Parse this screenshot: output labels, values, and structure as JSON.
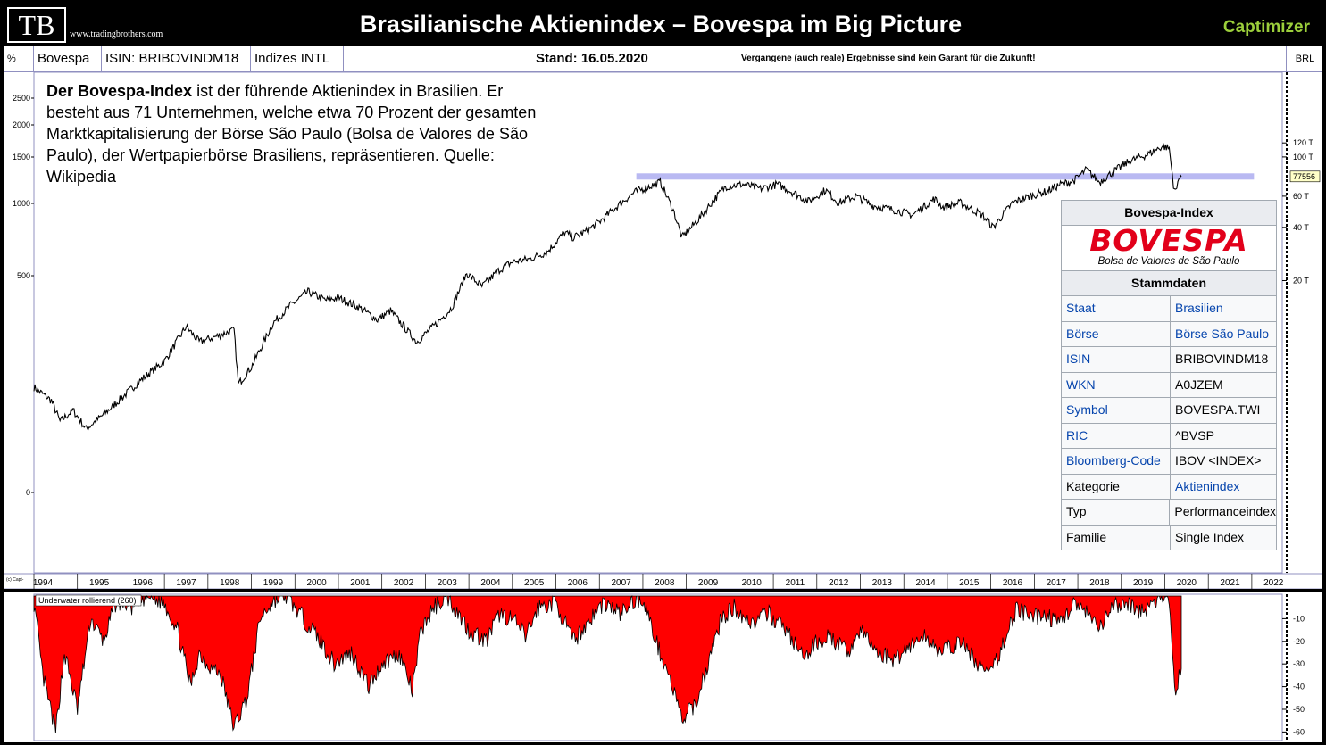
{
  "header": {
    "logo": "TB",
    "website": "www.tradingbrothers.com",
    "title": "Brasilianische Aktienindex – Bovespa im Big Picture",
    "brand": "Captimizer",
    "brand_color": "#9ccf3b"
  },
  "toolbar": {
    "percent": "%",
    "name": "Bovespa",
    "isin": "ISIN: BRIBOVINDM18",
    "group": "Indizes INTL",
    "date": "Stand: 16.05.2020",
    "disclaimer": "Vergangene (auch reale) Ergebnisse sind kein Garant für die Zukunft!",
    "currency": "BRL"
  },
  "description": {
    "bold": "Der Bovespa-Index",
    "text": " ist der führende Aktienindex in Brasilien. Er besteht aus 71 Unternehmen, welche etwa 70 Prozent der gesamten Marktkapitalisierung der Börse São Paulo (Bolsa de Valores de São Paulo), der Wertpapierbörse Brasiliens, repräsentieren. Quelle: Wikipedia"
  },
  "infobox": {
    "title": "Bovespa-Index",
    "logo_text": "BOVESPA",
    "logo_sub": "Bolsa de Valores de São Paulo",
    "section": "Stammdaten",
    "rows": [
      {
        "key": "Staat",
        "value": "Brasilien",
        "key_link": true,
        "value_link": true
      },
      {
        "key": "Börse",
        "value": "Börse São Paulo",
        "key_link": true,
        "value_link": true
      },
      {
        "key": "ISIN",
        "value": "BRIBOVINDM18",
        "key_link": true,
        "value_link": false
      },
      {
        "key": "WKN",
        "value": "A0JZEM",
        "key_link": true,
        "value_link": false
      },
      {
        "key": "Symbol",
        "value": "BOVESPA.TWI",
        "key_link": true,
        "value_link": false
      },
      {
        "key": "RIC",
        "value": "^BVSP",
        "key_link": true,
        "value_link": false
      },
      {
        "key": "Bloomberg-Code",
        "value": "IBOV <INDEX>",
        "key_link": true,
        "value_link": false
      },
      {
        "key": "Kategorie",
        "value": "Aktienindex",
        "key_link": false,
        "value_link": true
      },
      {
        "key": "Typ",
        "value": "Performanceindex",
        "key_link": false,
        "value_link": false
      },
      {
        "key": "Familie",
        "value": "Single Index",
        "key_link": false,
        "value_link": false
      }
    ]
  },
  "chart_data": [
    {
      "type": "line",
      "scale": "log",
      "x_ticks": [
        "1994",
        "1995",
        "1996",
        "1997",
        "1998",
        "1999",
        "2000",
        "2001",
        "2002",
        "2003",
        "2004",
        "2005",
        "2006",
        "2007",
        "2008",
        "2009",
        "2010",
        "2011",
        "2012",
        "2013",
        "2014",
        "2015",
        "2016",
        "2017",
        "2018",
        "2019",
        "2020",
        "2021",
        "2022"
      ],
      "left_ticks": [
        "2500",
        "2000",
        "1500",
        "1000",
        "500",
        "0"
      ],
      "right_ticks": [
        "120 T",
        "100 T",
        "60 T",
        "40 T",
        "20 T"
      ],
      "last_value": "77556",
      "resistance_level": 77556,
      "series": [
        {
          "values_points": [
            [
              1994.0,
              5
            ],
            [
              1994.4,
              4.2
            ],
            [
              1994.6,
              3.2
            ],
            [
              1994.9,
              3.7
            ],
            [
              1995.2,
              2.9
            ],
            [
              1995.6,
              3.5
            ],
            [
              1996.0,
              4.3
            ],
            [
              1996.5,
              5.6
            ],
            [
              1997.0,
              7.0
            ],
            [
              1997.5,
              11.0
            ],
            [
              1997.8,
              9.0
            ],
            [
              1998.1,
              9.5
            ],
            [
              1998.6,
              10.5
            ],
            [
              1998.7,
              5.2
            ],
            [
              1999.0,
              6.5
            ],
            [
              1999.5,
              11.5
            ],
            [
              1999.9,
              14.5
            ],
            [
              2000.3,
              17.3
            ],
            [
              2000.7,
              15.5
            ],
            [
              2001.0,
              16.0
            ],
            [
              2001.5,
              14.0
            ],
            [
              2001.9,
              12.0
            ],
            [
              2002.2,
              13.5
            ],
            [
              2002.6,
              10.3
            ],
            [
              2002.8,
              9.0
            ],
            [
              2003.3,
              11.7
            ],
            [
              2003.6,
              14.0
            ],
            [
              2003.95,
              22.0
            ],
            [
              2004.3,
              18.5
            ],
            [
              2004.7,
              23.0
            ],
            [
              2005.0,
              25.5
            ],
            [
              2005.4,
              26.5
            ],
            [
              2005.8,
              29.0
            ],
            [
              2006.2,
              37.5
            ],
            [
              2006.4,
              35.0
            ],
            [
              2006.7,
              38.0
            ],
            [
              2007.0,
              43.0
            ],
            [
              2007.5,
              55.0
            ],
            [
              2007.8,
              63.0
            ],
            [
              2008.4,
              72.0
            ],
            [
              2008.7,
              50.0
            ],
            [
              2008.9,
              35.0
            ],
            [
              2009.3,
              45.0
            ],
            [
              2009.6,
              56.0
            ],
            [
              2009.9,
              68.0
            ],
            [
              2010.3,
              70.0
            ],
            [
              2010.7,
              66.0
            ],
            [
              2011.1,
              70.0
            ],
            [
              2011.5,
              62.0
            ],
            [
              2011.8,
              56.0
            ],
            [
              2012.2,
              65.0
            ],
            [
              2012.5,
              55.0
            ],
            [
              2012.9,
              60.0
            ],
            [
              2013.3,
              53.0
            ],
            [
              2013.8,
              50.0
            ],
            [
              2014.2,
              47.0
            ],
            [
              2014.7,
              58.0
            ],
            [
              2014.9,
              52.0
            ],
            [
              2015.3,
              55.0
            ],
            [
              2015.8,
              47.0
            ],
            [
              2016.05,
              40.0
            ],
            [
              2016.5,
              55.0
            ],
            [
              2016.9,
              60.0
            ],
            [
              2017.3,
              64.0
            ],
            [
              2017.6,
              70.0
            ],
            [
              2017.9,
              73.0
            ],
            [
              2018.2,
              85.0
            ],
            [
              2018.5,
              72.0
            ],
            [
              2018.8,
              82.0
            ],
            [
              2019.2,
              95.0
            ],
            [
              2019.6,
              103.0
            ],
            [
              2019.95,
              115.0
            ],
            [
              2020.1,
              112.0
            ],
            [
              2020.2,
              70.0
            ],
            [
              2020.25,
              63.0
            ],
            [
              2020.35,
              80.0
            ],
            [
              2020.38,
              77.5
            ]
          ]
        }
      ]
    },
    {
      "type": "area",
      "name": "Underwater rollierend (260)",
      "yticks": [
        -10,
        -20,
        -30,
        -40,
        -50,
        -60
      ],
      "ylim": [
        -63,
        0
      ],
      "x_ticks": [
        "1994",
        "2022"
      ],
      "points": [
        [
          1994.0,
          -3
        ],
        [
          1994.2,
          -35
        ],
        [
          1994.5,
          -60
        ],
        [
          1994.7,
          -25
        ],
        [
          1995.0,
          -50
        ],
        [
          1995.3,
          -10
        ],
        [
          1995.6,
          -20
        ],
        [
          1995.9,
          -2
        ],
        [
          1996.3,
          -5
        ],
        [
          1996.6,
          0
        ],
        [
          1997.0,
          -3
        ],
        [
          1997.3,
          -15
        ],
        [
          1997.6,
          -40
        ],
        [
          1997.8,
          -25
        ],
        [
          1998.0,
          -30
        ],
        [
          1998.3,
          -35
        ],
        [
          1998.6,
          -58
        ],
        [
          1998.9,
          -45
        ],
        [
          1999.2,
          -10
        ],
        [
          1999.5,
          -2
        ],
        [
          1999.8,
          0
        ],
        [
          2000.2,
          -10
        ],
        [
          2000.6,
          -20
        ],
        [
          2000.9,
          -30
        ],
        [
          2001.3,
          -25
        ],
        [
          2001.7,
          -40
        ],
        [
          2002.0,
          -30
        ],
        [
          2002.4,
          -25
        ],
        [
          2002.7,
          -42
        ],
        [
          2002.9,
          -15
        ],
        [
          2003.2,
          -5
        ],
        [
          2003.5,
          0
        ],
        [
          2004.0,
          -15
        ],
        [
          2004.4,
          -20
        ],
        [
          2004.7,
          -8
        ],
        [
          2005.0,
          -10
        ],
        [
          2005.3,
          -18
        ],
        [
          2005.6,
          -5
        ],
        [
          2006.0,
          -3
        ],
        [
          2006.4,
          -20
        ],
        [
          2006.8,
          -10
        ],
        [
          2007.1,
          -3
        ],
        [
          2007.5,
          -8
        ],
        [
          2007.8,
          -2
        ],
        [
          2008.0,
          -1
        ],
        [
          2008.3,
          -20
        ],
        [
          2008.6,
          -35
        ],
        [
          2008.9,
          -55
        ],
        [
          2009.2,
          -48
        ],
        [
          2009.5,
          -30
        ],
        [
          2009.8,
          -10
        ],
        [
          2010.1,
          -5
        ],
        [
          2010.5,
          -12
        ],
        [
          2010.9,
          -8
        ],
        [
          2011.3,
          -15
        ],
        [
          2011.7,
          -28
        ],
        [
          2012.0,
          -20
        ],
        [
          2012.3,
          -18
        ],
        [
          2012.7,
          -25
        ],
        [
          2013.0,
          -15
        ],
        [
          2013.4,
          -25
        ],
        [
          2013.8,
          -28
        ],
        [
          2014.1,
          -22
        ],
        [
          2014.5,
          -18
        ],
        [
          2014.9,
          -25
        ],
        [
          2015.3,
          -20
        ],
        [
          2015.7,
          -30
        ],
        [
          2016.0,
          -35
        ],
        [
          2016.3,
          -20
        ],
        [
          2016.6,
          -5
        ],
        [
          2016.9,
          -10
        ],
        [
          2017.2,
          -8
        ],
        [
          2017.6,
          -12
        ],
        [
          2017.9,
          -3
        ],
        [
          2018.2,
          -8
        ],
        [
          2018.5,
          -15
        ],
        [
          2018.8,
          -5
        ],
        [
          2019.1,
          -3
        ],
        [
          2019.5,
          -7
        ],
        [
          2019.9,
          -1
        ],
        [
          2020.1,
          -2
        ],
        [
          2020.2,
          -30
        ],
        [
          2020.25,
          -45
        ],
        [
          2020.3,
          -38
        ],
        [
          2020.35,
          -32
        ],
        [
          2020.38,
          -32
        ]
      ]
    }
  ]
}
